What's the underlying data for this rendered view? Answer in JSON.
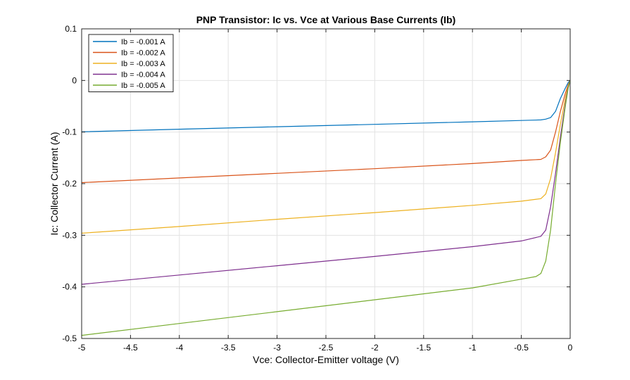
{
  "chart_data": {
    "type": "line",
    "title": "PNP Transistor: Ic vs. Vce at Various Base Currents (Ib)",
    "xlabel": "Vce: Collector-Emitter voltage (V)",
    "ylabel": "Ic: Collector Current (A)",
    "xlim": [
      -5,
      0
    ],
    "ylim": [
      -0.5,
      0.1
    ],
    "xticks": [
      -5,
      -4.5,
      -4,
      -3.5,
      -3,
      -2.5,
      -2,
      -1.5,
      -1,
      -0.5,
      0
    ],
    "xtick_labels": [
      "-5",
      "-4.5",
      "-4",
      "-3.5",
      "-3",
      "-2.5",
      "-2",
      "-1.5",
      "-1",
      "-0.5",
      "0"
    ],
    "yticks": [
      -0.5,
      -0.4,
      -0.3,
      -0.2,
      -0.1,
      0,
      0.1
    ],
    "ytick_labels": [
      "-0.5",
      "-0.4",
      "-0.3",
      "-0.2",
      "-0.1",
      "0",
      "0.1"
    ],
    "grid": true,
    "legend_position": "top-left",
    "series": [
      {
        "name": "Ib = -0.001 A",
        "color": "#0072BD",
        "x": [
          -5,
          -4,
          -3,
          -2,
          -1,
          -0.5,
          -0.3,
          -0.25,
          -0.2,
          -0.15,
          -0.1,
          -0.05,
          -0.02,
          0
        ],
        "y": [
          -0.0995,
          -0.0945,
          -0.0897,
          -0.085,
          -0.0802,
          -0.0775,
          -0.0765,
          -0.075,
          -0.072,
          -0.06,
          -0.035,
          -0.015,
          -0.004,
          0
        ]
      },
      {
        "name": "Ib = -0.002 A",
        "color": "#D95319",
        "x": [
          -5,
          -4,
          -3,
          -2,
          -1,
          -0.5,
          -0.3,
          -0.25,
          -0.2,
          -0.15,
          -0.1,
          -0.05,
          -0.02,
          0
        ],
        "y": [
          -0.198,
          -0.189,
          -0.18,
          -0.171,
          -0.161,
          -0.155,
          -0.153,
          -0.148,
          -0.135,
          -0.1,
          -0.06,
          -0.025,
          -0.008,
          0
        ]
      },
      {
        "name": "Ib = -0.003 A",
        "color": "#EDB120",
        "x": [
          -5,
          -4,
          -3,
          -2,
          -1,
          -0.5,
          -0.3,
          -0.25,
          -0.2,
          -0.15,
          -0.1,
          -0.05,
          -0.02,
          0
        ],
        "y": [
          -0.296,
          -0.283,
          -0.269,
          -0.256,
          -0.242,
          -0.234,
          -0.229,
          -0.22,
          -0.19,
          -0.14,
          -0.085,
          -0.035,
          -0.01,
          0
        ]
      },
      {
        "name": "Ib = -0.004 A",
        "color": "#7E2F8E",
        "x": [
          -5,
          -4,
          -3,
          -2,
          -1,
          -0.5,
          -0.3,
          -0.25,
          -0.2,
          -0.15,
          -0.1,
          -0.05,
          -0.02,
          0
        ],
        "y": [
          -0.395,
          -0.377,
          -0.359,
          -0.341,
          -0.322,
          -0.311,
          -0.302,
          -0.29,
          -0.245,
          -0.18,
          -0.11,
          -0.045,
          -0.013,
          0
        ]
      },
      {
        "name": "Ib = -0.005 A",
        "color": "#77AC30",
        "x": [
          -5,
          -4,
          -3,
          -2,
          -1,
          -0.5,
          -0.35,
          -0.3,
          -0.25,
          -0.2,
          -0.15,
          -0.1,
          -0.05,
          -0.02,
          0
        ],
        "y": [
          -0.494,
          -0.471,
          -0.448,
          -0.425,
          -0.402,
          -0.385,
          -0.38,
          -0.374,
          -0.35,
          -0.29,
          -0.2,
          -0.12,
          -0.05,
          -0.015,
          0
        ]
      }
    ]
  }
}
